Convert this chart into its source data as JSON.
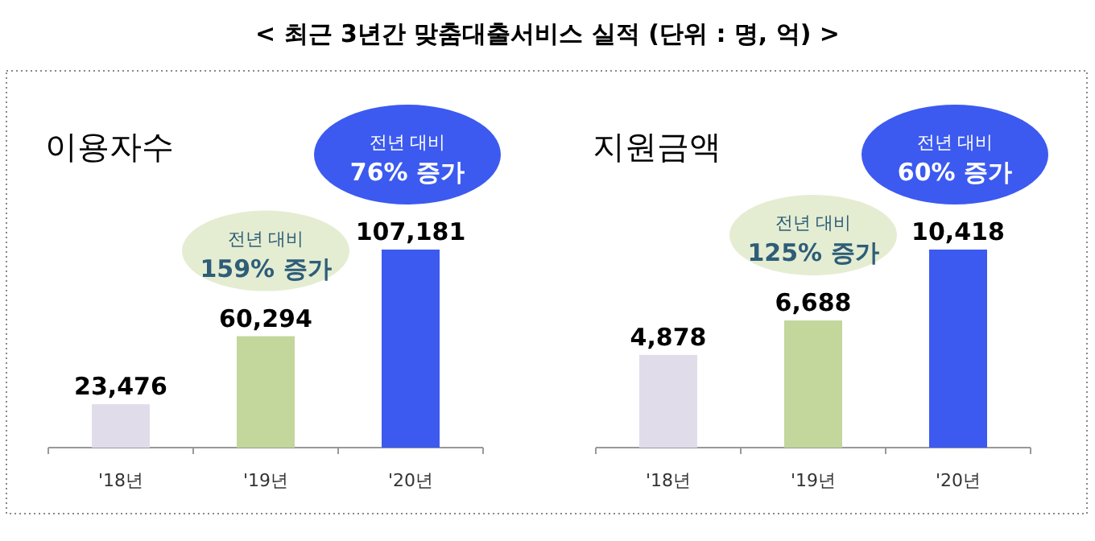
{
  "chart_data": [
    {
      "type": "bar",
      "title": "< 최근 3년간 맞춤대출서비스 실적 (단위 : 명, 억) >",
      "subtitle": "이용자수",
      "categories": [
        "'18년",
        "'19년",
        "'20년"
      ],
      "values": [
        23476,
        60294,
        107181
      ],
      "value_labels": [
        "23,476",
        "60,294",
        "107,181"
      ],
      "colors": [
        "#e1dcea",
        "#c3d69b",
        "#3c5af0"
      ],
      "annotations": [
        "전년 대비 159% 증가",
        "전년 대비 76% 증가"
      ]
    },
    {
      "type": "bar",
      "subtitle": "지원금액",
      "categories": [
        "'18년",
        "'19년",
        "'20년"
      ],
      "values": [
        4878,
        6688,
        10418
      ],
      "value_labels": [
        "4,878",
        "6,688",
        "10,418"
      ],
      "colors": [
        "#e1dcea",
        "#c3d69b",
        "#3c5af0"
      ],
      "annotations": [
        "전년 대비 125% 증가",
        "전년 대비 60% 증가"
      ]
    }
  ]
}
